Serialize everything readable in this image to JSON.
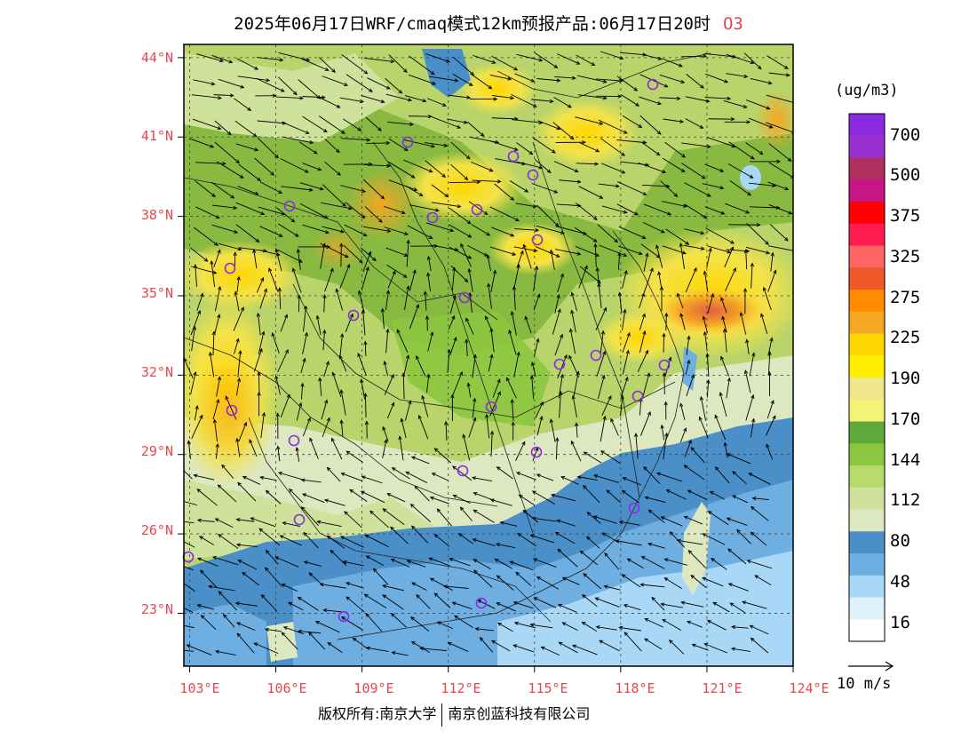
{
  "title": {
    "text": "2025年06月17日WRF/cmaq模式12km预报产品:06月17日20时",
    "species": "O3"
  },
  "map": {
    "lat_labels": [
      "44°N",
      "41°N",
      "38°N",
      "35°N",
      "32°N",
      "29°N",
      "26°N",
      "23°N"
    ],
    "lon_labels": [
      "103°E",
      "106°E",
      "109°E",
      "112°E",
      "115°E",
      "118°E",
      "121°E",
      "124°E"
    ],
    "station_marker": "circle-open",
    "station_color": "#8a2be2"
  },
  "colorbar": {
    "unit": "(ug/m3)",
    "labels": [
      "700",
      "500",
      "375",
      "325",
      "275",
      "225",
      "190",
      "170",
      "144",
      "112",
      "80",
      "48",
      "16"
    ],
    "colors_top_to_bottom": [
      "#8a2be2",
      "#9b30d0",
      "#b03060",
      "#c71585",
      "#ff0000",
      "#ff1c4c",
      "#ff6464",
      "#f05a28",
      "#ff8c00",
      "#f5a623",
      "#ffd700",
      "#ffee00",
      "#f0e68c",
      "#f3f37a",
      "#5fa83a",
      "#8cc63f",
      "#b8dc6b",
      "#cfe29b",
      "#dde8c0",
      "#4a8fc8",
      "#6eaee0",
      "#a8d8f5",
      "#dff2fb",
      "#ffffff"
    ]
  },
  "wind_reference": {
    "label": "10 m/s"
  },
  "footer": {
    "left": "版权所有:南京大学",
    "right": "南京创蓝科技有限公司"
  }
}
